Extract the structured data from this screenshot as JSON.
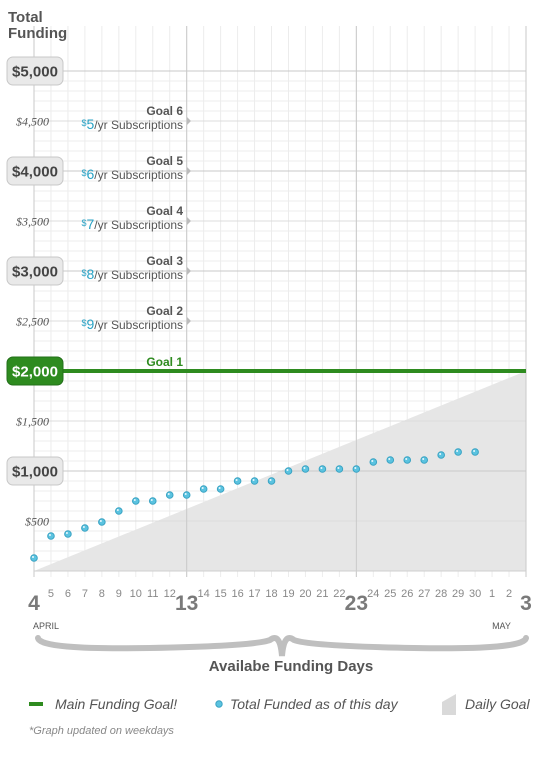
{
  "chart_data": {
    "type": "line",
    "ylabel_line1": "Total",
    "ylabel_line2": "Funding",
    "xlabel": "Availabe Funding Days",
    "ylim": [
      0,
      5000
    ],
    "y_major_ticks": [
      "$5,000",
      "$4,000",
      "$3,000",
      "$2,000",
      "$1,000"
    ],
    "y_major_values": [
      5000,
      4000,
      3000,
      2000,
      1000
    ],
    "y_minor_ticks": [
      "$4,500",
      "$3,500",
      "$2,500",
      "$1,500",
      "$500"
    ],
    "y_minor_values": [
      4500,
      3500,
      2500,
      1500,
      500
    ],
    "days": [
      {
        "label": "4",
        "big": true
      },
      {
        "label": "5"
      },
      {
        "label": "6"
      },
      {
        "label": "7"
      },
      {
        "label": "8"
      },
      {
        "label": "9"
      },
      {
        "label": "10"
      },
      {
        "label": "11"
      },
      {
        "label": "12"
      },
      {
        "label": "13",
        "big": true
      },
      {
        "label": "14"
      },
      {
        "label": "15"
      },
      {
        "label": "16"
      },
      {
        "label": "17"
      },
      {
        "label": "18"
      },
      {
        "label": "19"
      },
      {
        "label": "20"
      },
      {
        "label": "21"
      },
      {
        "label": "22"
      },
      {
        "label": "23",
        "big": true
      },
      {
        "label": "24"
      },
      {
        "label": "25"
      },
      {
        "label": "26"
      },
      {
        "label": "27"
      },
      {
        "label": "28"
      },
      {
        "label": "29"
      },
      {
        "label": "30"
      },
      {
        "label": "1"
      },
      {
        "label": "2"
      },
      {
        "label": "3",
        "big": true
      }
    ],
    "month_labels": [
      {
        "label": "APRIL",
        "day_index": 0
      },
      {
        "label": "MAY",
        "day_index": 27
      }
    ],
    "main_goal": {
      "label": "Goal 1",
      "value": 2000,
      "tick_label": "$2,000",
      "color": "#2e8b1f"
    },
    "subscription_goals": [
      {
        "goal": "Goal 2",
        "price": "9",
        "dollar": "$",
        "suffix": "/yr Subscriptions",
        "value": 2500
      },
      {
        "goal": "Goal 3",
        "price": "8",
        "dollar": "$",
        "suffix": "/yr Subscriptions",
        "value": 3000
      },
      {
        "goal": "Goal 4",
        "price": "7",
        "dollar": "$",
        "suffix": "/yr Subscriptions",
        "value": 3500
      },
      {
        "goal": "Goal 5",
        "price": "6",
        "dollar": "$",
        "suffix": "/yr Subscriptions",
        "value": 4000
      },
      {
        "goal": "Goal 6",
        "price": "5",
        "dollar": "$",
        "suffix": "/yr Subscriptions",
        "value": 4500
      }
    ],
    "daily_goal": {
      "start_value": 0,
      "end_value": 2000,
      "color": "#e6e6e6"
    },
    "series": [
      {
        "name": "Total Funded as of this day",
        "color": "#5bc3e0",
        "day_index": [
          0,
          1,
          2,
          3,
          4,
          5,
          6,
          7,
          8,
          9,
          10,
          11,
          12,
          13,
          14,
          15,
          16,
          17,
          18,
          19,
          20,
          21,
          22,
          23,
          24,
          25,
          26
        ],
        "values": [
          130,
          350,
          370,
          430,
          490,
          600,
          700,
          700,
          760,
          760,
          820,
          820,
          900,
          900,
          900,
          1000,
          1020,
          1020,
          1020,
          1020,
          1090,
          1110,
          1110,
          1110,
          1160,
          1190,
          1190
        ]
      }
    ],
    "legend": [
      {
        "key": "main-goal",
        "label": "Main Funding Goal!"
      },
      {
        "key": "total-funded",
        "label": "Total Funded as of this day"
      },
      {
        "key": "daily-goal",
        "label": "Daily Goal"
      }
    ],
    "note": "*Graph updated on weekdays"
  }
}
